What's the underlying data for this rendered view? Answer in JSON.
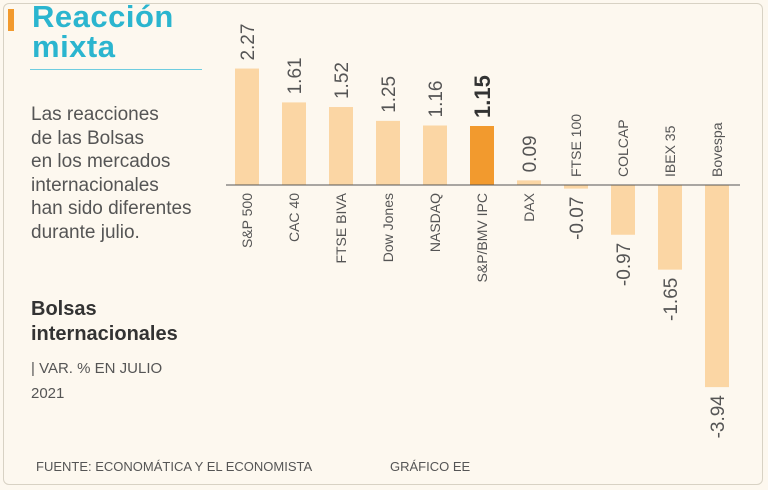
{
  "header": {
    "title_line1": "Reacción",
    "title_line2": "mixta"
  },
  "intro": {
    "lines": [
      "Las reacciones",
      "de las Bolsas",
      "en los mercados",
      "internacionales",
      "han sido diferentes",
      "durante julio."
    ]
  },
  "section": {
    "subtitle_line1": "Bolsas",
    "subtitle_line2": "internacionales",
    "unit_line1": "| VAR. % EN JULIO",
    "unit_line2": "2021"
  },
  "footer": {
    "source": "FUENTE: ECONOMÁTICA Y EL ECONOMISTA",
    "credit": "GRÁFICO EE"
  },
  "colors": {
    "background": "#fdf8ef",
    "title": "#2bb5cf",
    "accent": "#f29a2e",
    "bar": "#fbd6a4",
    "bar_highlight": "#f29a2e",
    "text": "#555555"
  },
  "chart_data": {
    "type": "bar",
    "orientation": "vertical",
    "title": "Bolsas internacionales",
    "ylabel": "VAR. % EN JULIO 2021",
    "xlabel": "",
    "grid": false,
    "highlight": "S&P/BMV IPC",
    "categories": [
      "S&P 500",
      "CAC 40",
      "FTSE BIVA",
      "Dow Jones",
      "NASDAQ",
      "S&P/BMV IPC",
      "DAX",
      "FTSE 100",
      "COLCAP",
      "IBEX 35",
      "Bovespa"
    ],
    "values": [
      2.27,
      1.61,
      1.52,
      1.25,
      1.16,
      1.15,
      0.09,
      -0.07,
      -0.97,
      -1.65,
      -3.94
    ],
    "value_labels": [
      "2.27",
      "1.61",
      "1.52",
      "1.25",
      "1.16",
      "1.15",
      "0.09",
      "-0.07",
      "-0.97",
      "-1.65",
      "-3.94"
    ],
    "ylim": [
      -3.94,
      2.27
    ]
  }
}
